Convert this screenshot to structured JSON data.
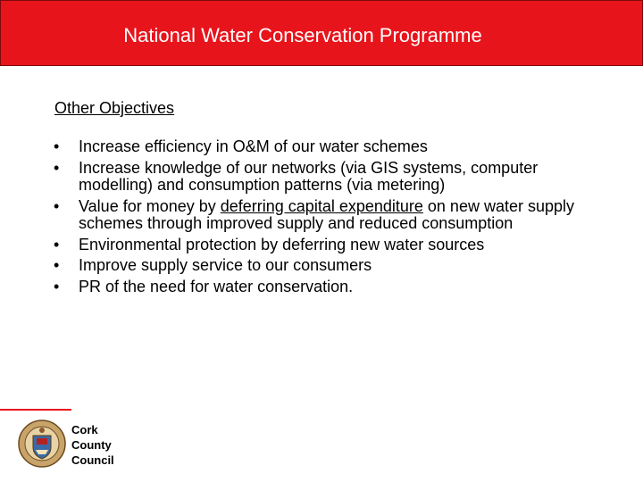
{
  "header": {
    "title": "National Water Conservation Programme"
  },
  "section": {
    "heading": "Other Objectives"
  },
  "bullets": {
    "b1": "Increase efficiency in O&M of our water schemes",
    "b2": "Increase knowledge of our networks (via GIS systems, computer modelling) and consumption patterns (via metering)",
    "b3_before": "Value for money by ",
    "b3_underlined": "deferring capital expenditure",
    "b3_after": " on new water supply schemes through improved supply and reduced consumption",
    "b4": "Environmental protection by deferring new water sources",
    "b5": "Improve supply service to our consumers",
    "b6": "PR of the need for water conservation."
  },
  "footer": {
    "org_line1": "Cork",
    "org_line2": "County",
    "org_line3": "Council",
    "crest_icon": "county-crest-icon"
  },
  "colors": {
    "header_red": "#e8141c",
    "text": "#000000",
    "white": "#ffffff"
  }
}
